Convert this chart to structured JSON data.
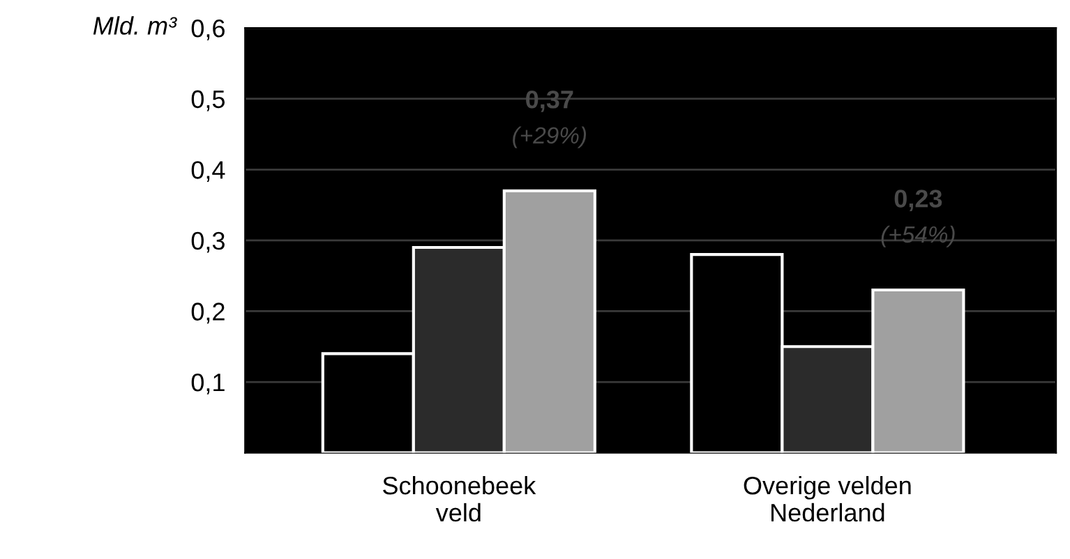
{
  "chart_data": {
    "type": "bar",
    "ylabel": "Mld. m³",
    "categories": [
      "Schoonebeek\nveld",
      "Overige velden\nNederland"
    ],
    "series": [
      {
        "color": "#000000",
        "values": [
          0.14,
          0.28
        ]
      },
      {
        "color": "#2b2b2b",
        "values": [
          0.29,
          0.15
        ]
      },
      {
        "color": "#a0a0a0",
        "values": [
          0.37,
          0.23
        ]
      }
    ],
    "ylim": [
      0,
      0.6
    ],
    "yticks": [
      {
        "value": 0.1,
        "label": "0,1"
      },
      {
        "value": 0.2,
        "label": "0,2"
      },
      {
        "value": 0.3,
        "label": "0,3"
      },
      {
        "value": 0.4,
        "label": "0,4"
      },
      {
        "value": 0.5,
        "label": "0,5"
      },
      {
        "value": 0.6,
        "label": "0,6"
      }
    ],
    "grid": "y",
    "annotations": [
      "0,37\n(+29%)",
      "0,23\n(+54%)"
    ]
  }
}
